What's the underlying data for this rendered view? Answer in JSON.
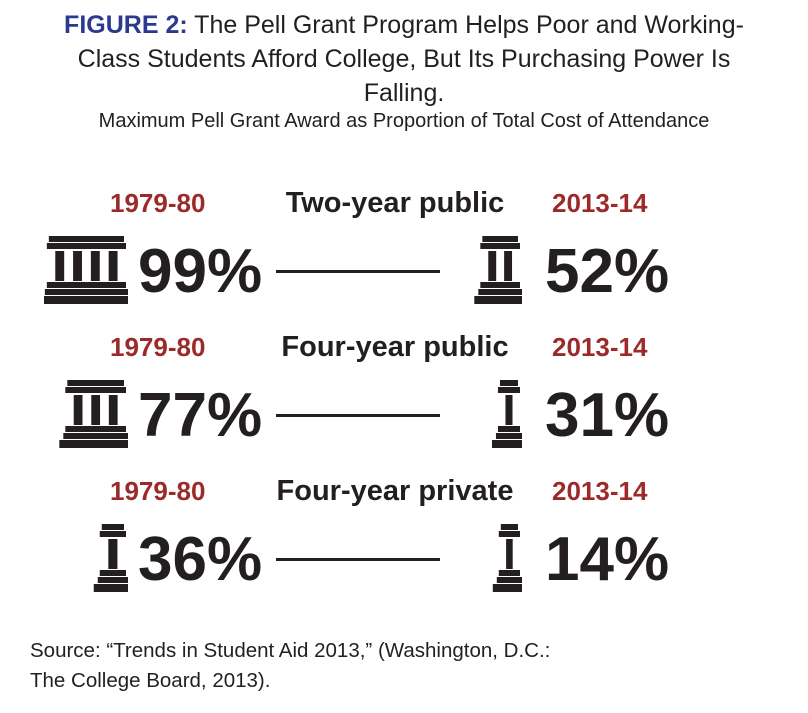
{
  "chart_data": {
    "type": "table",
    "title_lead": "FIGURE 2:",
    "title": "The Pell Grant Program Helps Poor and Working-Class Students Afford College, But Its Purchasing Power Is Falling.",
    "subtitle": "Maximum Pell Grant Award as Proportion of Total Cost of Attendance",
    "rows": [
      {
        "sector": "Two-year public",
        "year_start": "1979-80",
        "year_end": "2013-14",
        "value_start": 99,
        "value_end": 52,
        "label_start": "99%",
        "label_end": "52%"
      },
      {
        "sector": "Four-year public",
        "year_start": "1979-80",
        "year_end": "2013-14",
        "value_start": 77,
        "value_end": 31,
        "label_start": "77%",
        "label_end": "31%"
      },
      {
        "sector": "Four-year private",
        "year_start": "1979-80",
        "year_end": "2013-14",
        "value_start": 36,
        "value_end": 14,
        "label_start": "36%",
        "label_end": "14%"
      }
    ],
    "source": "Source: “Trends in Student Aid 2013,” (Washington, D.C.: The College Board, 2013).",
    "colors": {
      "title_lead": "#2b3a8f",
      "year": "#9c2a2a",
      "text": "#231f20"
    }
  }
}
